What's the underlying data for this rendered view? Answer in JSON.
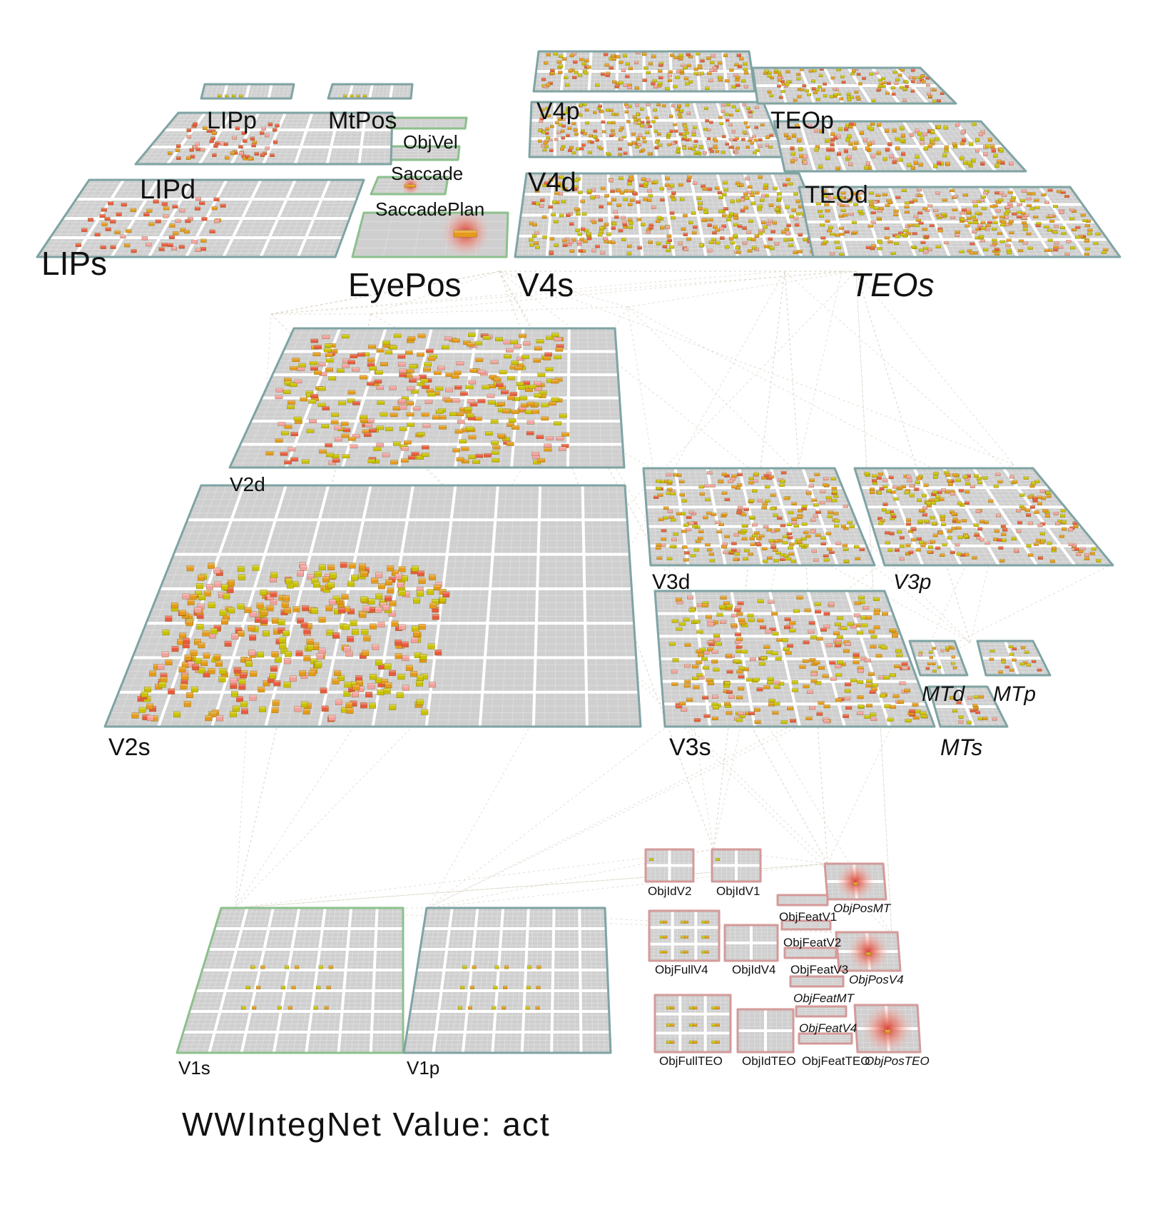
{
  "caption": "WWIntegNet Value: act",
  "colors": {
    "background": "#ffffff",
    "grid_fill": "#cfcfcf",
    "grid_line": "#ffffff",
    "border_default": "#7fa3a3",
    "border_input": "#8cc08c",
    "border_target": "#d49a9a",
    "unit_yellow": "#c9c200",
    "unit_orange": "#e59a1a",
    "unit_red": "#e85a40",
    "unit_pink": "#f3a0a0",
    "projection_line": "#d8d0c0"
  },
  "layers": [
    {
      "id": "lips",
      "label": "LIPs",
      "fontsize": 46,
      "style": "normal",
      "border": "default",
      "pattern": "none"
    },
    {
      "id": "lipd",
      "label": "LIPd",
      "fontsize": 38,
      "style": "normal",
      "border": "default",
      "pattern": "red-cluster"
    },
    {
      "id": "lipp",
      "label": "LIPp",
      "fontsize": 34,
      "style": "normal",
      "border": "default",
      "pattern": "red-cluster"
    },
    {
      "id": "mtpos",
      "label": "MtPos",
      "fontsize": 34,
      "style": "normal",
      "border": "default",
      "pattern": "yellow-row"
    },
    {
      "id": "lip-small",
      "label": "",
      "fontsize": 0,
      "style": "normal",
      "border": "default",
      "pattern": "yellow-row"
    },
    {
      "id": "eyepos",
      "label": "EyePos",
      "fontsize": 46,
      "style": "normal",
      "border": "default",
      "pattern": "none"
    },
    {
      "id": "objvel",
      "label": "ObjVel",
      "fontsize": 26,
      "style": "normal",
      "border": "input",
      "pattern": "none"
    },
    {
      "id": "saccade",
      "label": "Saccade",
      "fontsize": 26,
      "style": "normal",
      "border": "input",
      "pattern": "blob"
    },
    {
      "id": "saccadeplan",
      "label": "SaccadePlan",
      "fontsize": 26,
      "style": "normal",
      "border": "input",
      "pattern": "blob"
    },
    {
      "id": "v4s",
      "label": "V4s",
      "fontsize": 46,
      "style": "normal",
      "border": "default",
      "pattern": "none"
    },
    {
      "id": "v4p",
      "label": "V4p",
      "fontsize": 34,
      "style": "normal",
      "border": "default",
      "pattern": "dense"
    },
    {
      "id": "v4d",
      "label": "V4d",
      "fontsize": 38,
      "style": "normal",
      "border": "default",
      "pattern": "dense"
    },
    {
      "id": "v4-top",
      "label": "",
      "fontsize": 0,
      "style": "normal",
      "border": "default",
      "pattern": "dense"
    },
    {
      "id": "teos",
      "label": "TEOs",
      "fontsize": 46,
      "style": "italic",
      "border": "default",
      "pattern": "none"
    },
    {
      "id": "teop",
      "label": "TEOp",
      "fontsize": 34,
      "style": "normal",
      "border": "default",
      "pattern": "dense"
    },
    {
      "id": "teod",
      "label": "TEOd",
      "fontsize": 34,
      "style": "normal",
      "border": "default",
      "pattern": "dense"
    },
    {
      "id": "teo-top",
      "label": "",
      "fontsize": 0,
      "style": "normal",
      "border": "default",
      "pattern": "dense"
    },
    {
      "id": "v2d",
      "label": "V2d",
      "fontsize": 28,
      "style": "normal",
      "border": "default",
      "pattern": "dense"
    },
    {
      "id": "v2s",
      "label": "V2s",
      "fontsize": 34,
      "style": "normal",
      "border": "default",
      "pattern": "dense"
    },
    {
      "id": "v3d",
      "label": "V3d",
      "fontsize": 30,
      "style": "normal",
      "border": "default",
      "pattern": "dense"
    },
    {
      "id": "v3p",
      "label": "V3p",
      "fontsize": 30,
      "style": "italic",
      "border": "default",
      "pattern": "dense"
    },
    {
      "id": "v3s",
      "label": "V3s",
      "fontsize": 34,
      "style": "normal",
      "border": "default",
      "pattern": "dense"
    },
    {
      "id": "mtd",
      "label": "MTd",
      "fontsize": 30,
      "style": "italic",
      "border": "default",
      "pattern": "sparse"
    },
    {
      "id": "mtp",
      "label": "MTp",
      "fontsize": 30,
      "style": "italic",
      "border": "default",
      "pattern": "sparse"
    },
    {
      "id": "mts",
      "label": "MTs",
      "fontsize": 32,
      "style": "italic",
      "border": "default",
      "pattern": "sparse"
    },
    {
      "id": "v1s",
      "label": "V1s",
      "fontsize": 26,
      "style": "normal",
      "border": "input",
      "pattern": "grid-units"
    },
    {
      "id": "v1p",
      "label": "V1p",
      "fontsize": 26,
      "style": "normal",
      "border": "default",
      "pattern": "grid-units"
    },
    {
      "id": "objidv2",
      "label": "ObjIdV2",
      "fontsize": 17,
      "style": "normal",
      "border": "target",
      "pattern": "single"
    },
    {
      "id": "objidv1",
      "label": "ObjIdV1",
      "fontsize": 17,
      "style": "normal",
      "border": "target",
      "pattern": "single"
    },
    {
      "id": "objposmt",
      "label": "ObjPosMT",
      "fontsize": 17,
      "style": "italic",
      "border": "target",
      "pattern": "blob"
    },
    {
      "id": "objfeatv1",
      "label": "ObjFeatV1",
      "fontsize": 17,
      "style": "normal",
      "border": "target",
      "pattern": "none"
    },
    {
      "id": "objfullv4",
      "label": "ObjFullV4",
      "fontsize": 17,
      "style": "normal",
      "border": "target",
      "pattern": "grid-units"
    },
    {
      "id": "objidv4",
      "label": "ObjIdV4",
      "fontsize": 17,
      "style": "normal",
      "border": "target",
      "pattern": "none"
    },
    {
      "id": "objfeatv2",
      "label": "ObjFeatV2",
      "fontsize": 17,
      "style": "normal",
      "border": "target",
      "pattern": "none"
    },
    {
      "id": "objposv4",
      "label": "ObjPosV4",
      "fontsize": 17,
      "style": "italic",
      "border": "target",
      "pattern": "blob"
    },
    {
      "id": "objfeatv3",
      "label": "ObjFeatV3",
      "fontsize": 17,
      "style": "normal",
      "border": "target",
      "pattern": "none"
    },
    {
      "id": "objfeatmt",
      "label": "ObjFeatMT",
      "fontsize": 17,
      "style": "italic",
      "border": "target",
      "pattern": "none"
    },
    {
      "id": "objfeatv4",
      "label": "ObjFeatV4",
      "fontsize": 17,
      "style": "italic",
      "border": "target",
      "pattern": "none"
    },
    {
      "id": "objfullteo",
      "label": "ObjFullTEO",
      "fontsize": 17,
      "style": "normal",
      "border": "target",
      "pattern": "grid-units"
    },
    {
      "id": "objidteo",
      "label": "ObjIdTEO",
      "fontsize": 17,
      "style": "normal",
      "border": "target",
      "pattern": "none"
    },
    {
      "id": "objfeatteo",
      "label": "ObjFeatTEO",
      "fontsize": 17,
      "style": "normal",
      "border": "target",
      "pattern": "none"
    },
    {
      "id": "objposteo",
      "label": "ObjPosTEO",
      "fontsize": 17,
      "style": "italic",
      "border": "target",
      "pattern": "blob"
    }
  ]
}
